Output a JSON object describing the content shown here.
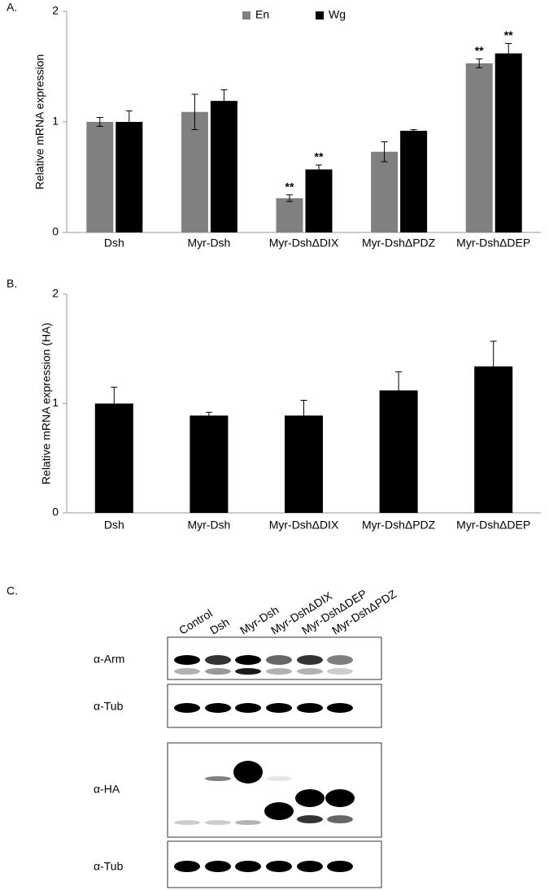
{
  "chart_data": [
    {
      "type": "bar",
      "panel": "A.",
      "ylabel": "Relative mRNA expression",
      "categories": [
        "Dsh",
        "Myr-Dsh",
        "Myr-DshΔDIX",
        "Myr-DshΔPDZ",
        "Myr-DshΔDEP"
      ],
      "series": [
        {
          "name": "En",
          "color": "#808080",
          "values": [
            1.0,
            1.09,
            0.31,
            0.73,
            1.53
          ],
          "errors": [
            0.04,
            0.16,
            0.03,
            0.09,
            0.04
          ],
          "significance": [
            null,
            null,
            "**",
            null,
            "**"
          ]
        },
        {
          "name": "Wg",
          "color": "#000000",
          "values": [
            1.0,
            1.19,
            0.57,
            0.92,
            1.62
          ],
          "errors": [
            0.1,
            0.1,
            0.04,
            0.01,
            0.09
          ],
          "significance": [
            null,
            null,
            "**",
            null,
            "**"
          ]
        }
      ],
      "ylim": [
        0,
        2
      ],
      "yticks": [
        0,
        1,
        2
      ],
      "legend": "top"
    },
    {
      "type": "bar",
      "panel": "B.",
      "ylabel": "Relative mRNA expression (HA)",
      "categories": [
        "Dsh",
        "Myr-Dsh",
        "Myr-DshΔDIX",
        "Myr-DshΔPDZ",
        "Myr-DshΔDEP"
      ],
      "values": [
        1.0,
        0.89,
        0.89,
        1.12,
        1.34
      ],
      "errors": [
        0.15,
        0.03,
        0.14,
        0.17,
        0.23
      ],
      "color": "#000000",
      "ylim": [
        0,
        2
      ],
      "yticks": [
        0,
        1,
        2
      ]
    }
  ],
  "blot": {
    "panel": "C.",
    "lanes": [
      "Control",
      "Dsh",
      "Myr-Dsh",
      "Myr-DshΔDIX",
      "Myr-DshΔDEP",
      "Myr-DshΔPDZ"
    ],
    "rows": [
      "α-Arm",
      "α-Tub",
      "α-HA",
      "α-Tub"
    ]
  }
}
